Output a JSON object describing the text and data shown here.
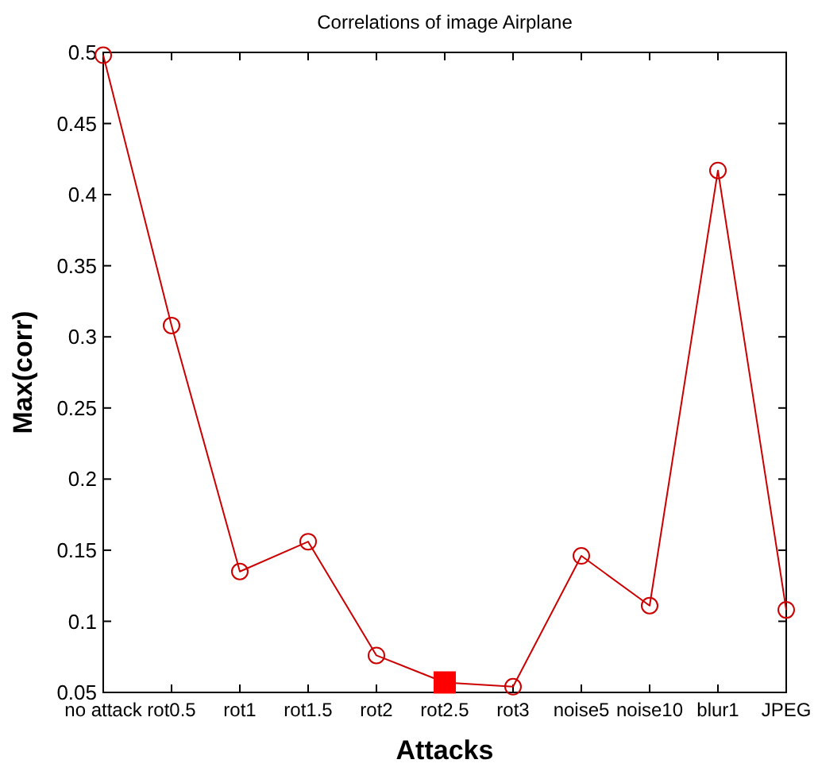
{
  "chart_data": {
    "type": "line",
    "title": "Correlations of image Airplane",
    "xlabel": "Attacks",
    "ylabel": "Max(corr)",
    "categories": [
      "no attack",
      "rot0.5",
      "rot1",
      "rot1.5",
      "rot2",
      "rot2.5",
      "rot3",
      "noise5",
      "noise10",
      "blur1",
      "JPEG"
    ],
    "series": [
      {
        "color": "#cc0000",
        "marker": "circle",
        "values": [
          0.498,
          0.308,
          0.135,
          0.156,
          0.076,
          0.057,
          0.054,
          0.146,
          0.111,
          0.417,
          0.108
        ]
      },
      {
        "type": "scatter",
        "color": "#ff0000",
        "marker": "square",
        "x": [
          "rot2.5"
        ],
        "values": [
          0.057
        ]
      }
    ],
    "ylim": [
      0.05,
      0.5
    ],
    "yticks": [
      0.05,
      0.1,
      0.15,
      0.2,
      0.25,
      0.3,
      0.35,
      0.4,
      0.45,
      0.5
    ],
    "grid": false
  }
}
